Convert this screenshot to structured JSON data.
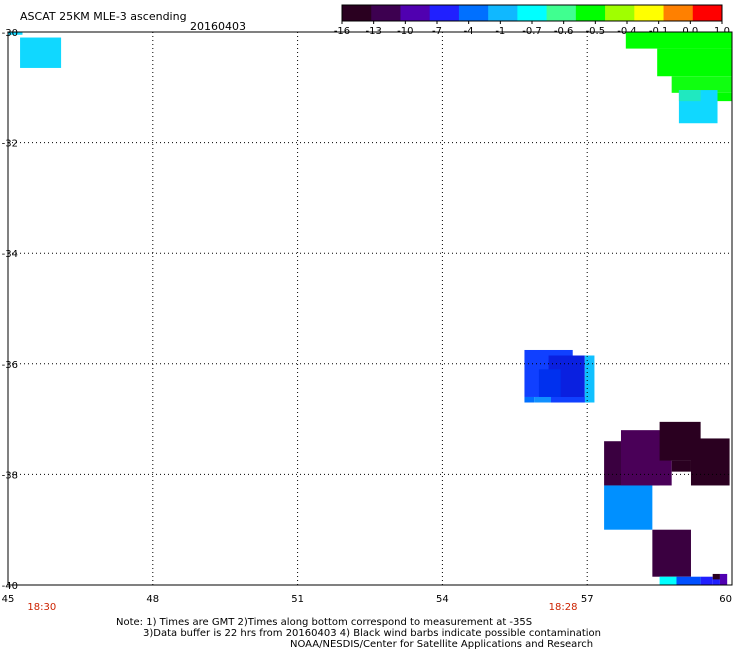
{
  "chart_data": {
    "type": "heatmap",
    "title": "ASCAT 25KM MLE-3 ascending",
    "date": "20160403",
    "x_ticks": [
      45,
      48,
      51,
      54,
      57,
      60
    ],
    "y_ticks": [
      -30,
      -32,
      -34,
      -36,
      -38,
      -40
    ],
    "xlim": [
      45,
      60
    ],
    "ylim": [
      -40,
      -30
    ],
    "grid": true,
    "colorbar": {
      "labels": [
        "-16",
        "-13",
        "-10",
        "-7",
        "-4",
        "-1",
        "-0.7",
        "-0.6",
        "-0.5",
        "-0.4",
        "-0.1",
        "0.0",
        "1.0"
      ],
      "colors": [
        "#2a0020",
        "#3d0050",
        "#5000b0",
        "#2020ff",
        "#0070ff",
        "#10b8ff",
        "#00ffff",
        "#40ff90",
        "#00ff00",
        "#a0ff00",
        "#ffff00",
        "#ff8000",
        "#ff0000"
      ]
    },
    "time_labels": [
      {
        "text": "18:30",
        "x": 45.7
      },
      {
        "text": "18:28",
        "x": 56.5
      }
    ],
    "cells": [
      {
        "x0": 45.25,
        "x1": 46.1,
        "y0": -30.1,
        "y1": -30.65,
        "color": "#10d8ff"
      },
      {
        "x0": 45.0,
        "x1": 45.3,
        "y0": -30.0,
        "y1": -30.05,
        "color": "#10d8ff"
      },
      {
        "x0": 57.8,
        "x1": 60.0,
        "y0": -30.0,
        "y1": -30.3,
        "color": "#00ff00"
      },
      {
        "x0": 58.45,
        "x1": 60.0,
        "y0": -30.3,
        "y1": -30.8,
        "color": "#00ff00"
      },
      {
        "x0": 58.75,
        "x1": 60.0,
        "y0": -30.8,
        "y1": -31.1,
        "color": "#10ff10"
      },
      {
        "x0": 59.35,
        "x1": 60.0,
        "y0": -31.1,
        "y1": -31.25,
        "color": "#00ff00"
      },
      {
        "x0": 58.9,
        "x1": 59.7,
        "y0": -31.05,
        "y1": -31.65,
        "color": "#10d8ff"
      },
      {
        "x0": 58.9,
        "x1": 59.35,
        "y0": -31.05,
        "y1": -31.25,
        "color": "#20e8c0"
      },
      {
        "x0": 55.7,
        "x1": 56.7,
        "y0": -35.75,
        "y1": -36.6,
        "color": "#1040ff"
      },
      {
        "x0": 56.2,
        "x1": 56.95,
        "y0": -35.85,
        "y1": -36.7,
        "color": "#0a20e0"
      },
      {
        "x0": 56.0,
        "x1": 56.45,
        "y0": -36.1,
        "y1": -36.6,
        "color": "#0030ee"
      },
      {
        "x0": 56.95,
        "x1": 57.15,
        "y0": -35.85,
        "y1": -36.7,
        "color": "#10c0ff"
      },
      {
        "x0": 55.7,
        "x1": 55.9,
        "y0": -36.6,
        "y1": -36.7,
        "color": "#0070ff"
      },
      {
        "x0": 55.9,
        "x1": 56.25,
        "y0": -36.6,
        "y1": -36.7,
        "color": "#1090ff"
      },
      {
        "x0": 56.25,
        "x1": 56.95,
        "y0": -36.6,
        "y1": -36.7,
        "color": "#1040ff"
      },
      {
        "x0": 57.35,
        "x1": 58.5,
        "y0": -37.4,
        "y1": -38.2,
        "color": "#3a0040"
      },
      {
        "x0": 57.7,
        "x1": 58.75,
        "y0": -37.2,
        "y1": -38.2,
        "color": "#4a0058"
      },
      {
        "x0": 58.5,
        "x1": 59.35,
        "y0": -37.05,
        "y1": -37.75,
        "color": "#2a0020"
      },
      {
        "x0": 58.75,
        "x1": 59.15,
        "y0": -37.75,
        "y1": -37.95,
        "color": "#2a0020"
      },
      {
        "x0": 59.15,
        "x1": 59.95,
        "y0": -37.35,
        "y1": -38.2,
        "color": "#2a0020"
      },
      {
        "x0": 57.35,
        "x1": 58.35,
        "y0": -38.2,
        "y1": -39.0,
        "color": "#0090ff"
      },
      {
        "x0": 58.35,
        "x1": 59.15,
        "y0": -39.0,
        "y1": -39.85,
        "color": "#3a0040"
      },
      {
        "x0": 58.5,
        "x1": 58.85,
        "y0": -39.85,
        "y1": -40.0,
        "color": "#00ffff"
      },
      {
        "x0": 58.85,
        "x1": 59.35,
        "y0": -39.85,
        "y1": -40.0,
        "color": "#0050ff"
      },
      {
        "x0": 59.35,
        "x1": 59.6,
        "y0": -39.85,
        "y1": -40.0,
        "color": "#2020ff"
      },
      {
        "x0": 59.6,
        "x1": 59.75,
        "y0": -39.8,
        "y1": -39.9,
        "color": "#2a0020"
      },
      {
        "x0": 59.75,
        "x1": 59.9,
        "y0": -39.8,
        "y1": -40.0,
        "color": "#5000b0"
      },
      {
        "x0": 59.6,
        "x1": 59.75,
        "y0": -39.9,
        "y1": -40.0,
        "color": "#2020ff"
      }
    ],
    "notes": [
      "Note: 1) Times are GMT 2)Times along bottom correspond to measurement at -35S",
      "3)Data buffer is 22 hrs from 20160403 4) Black wind barbs indicate possible contamination",
      "NOAA/NESDIS/Center for Satellite Applications and Research"
    ]
  }
}
